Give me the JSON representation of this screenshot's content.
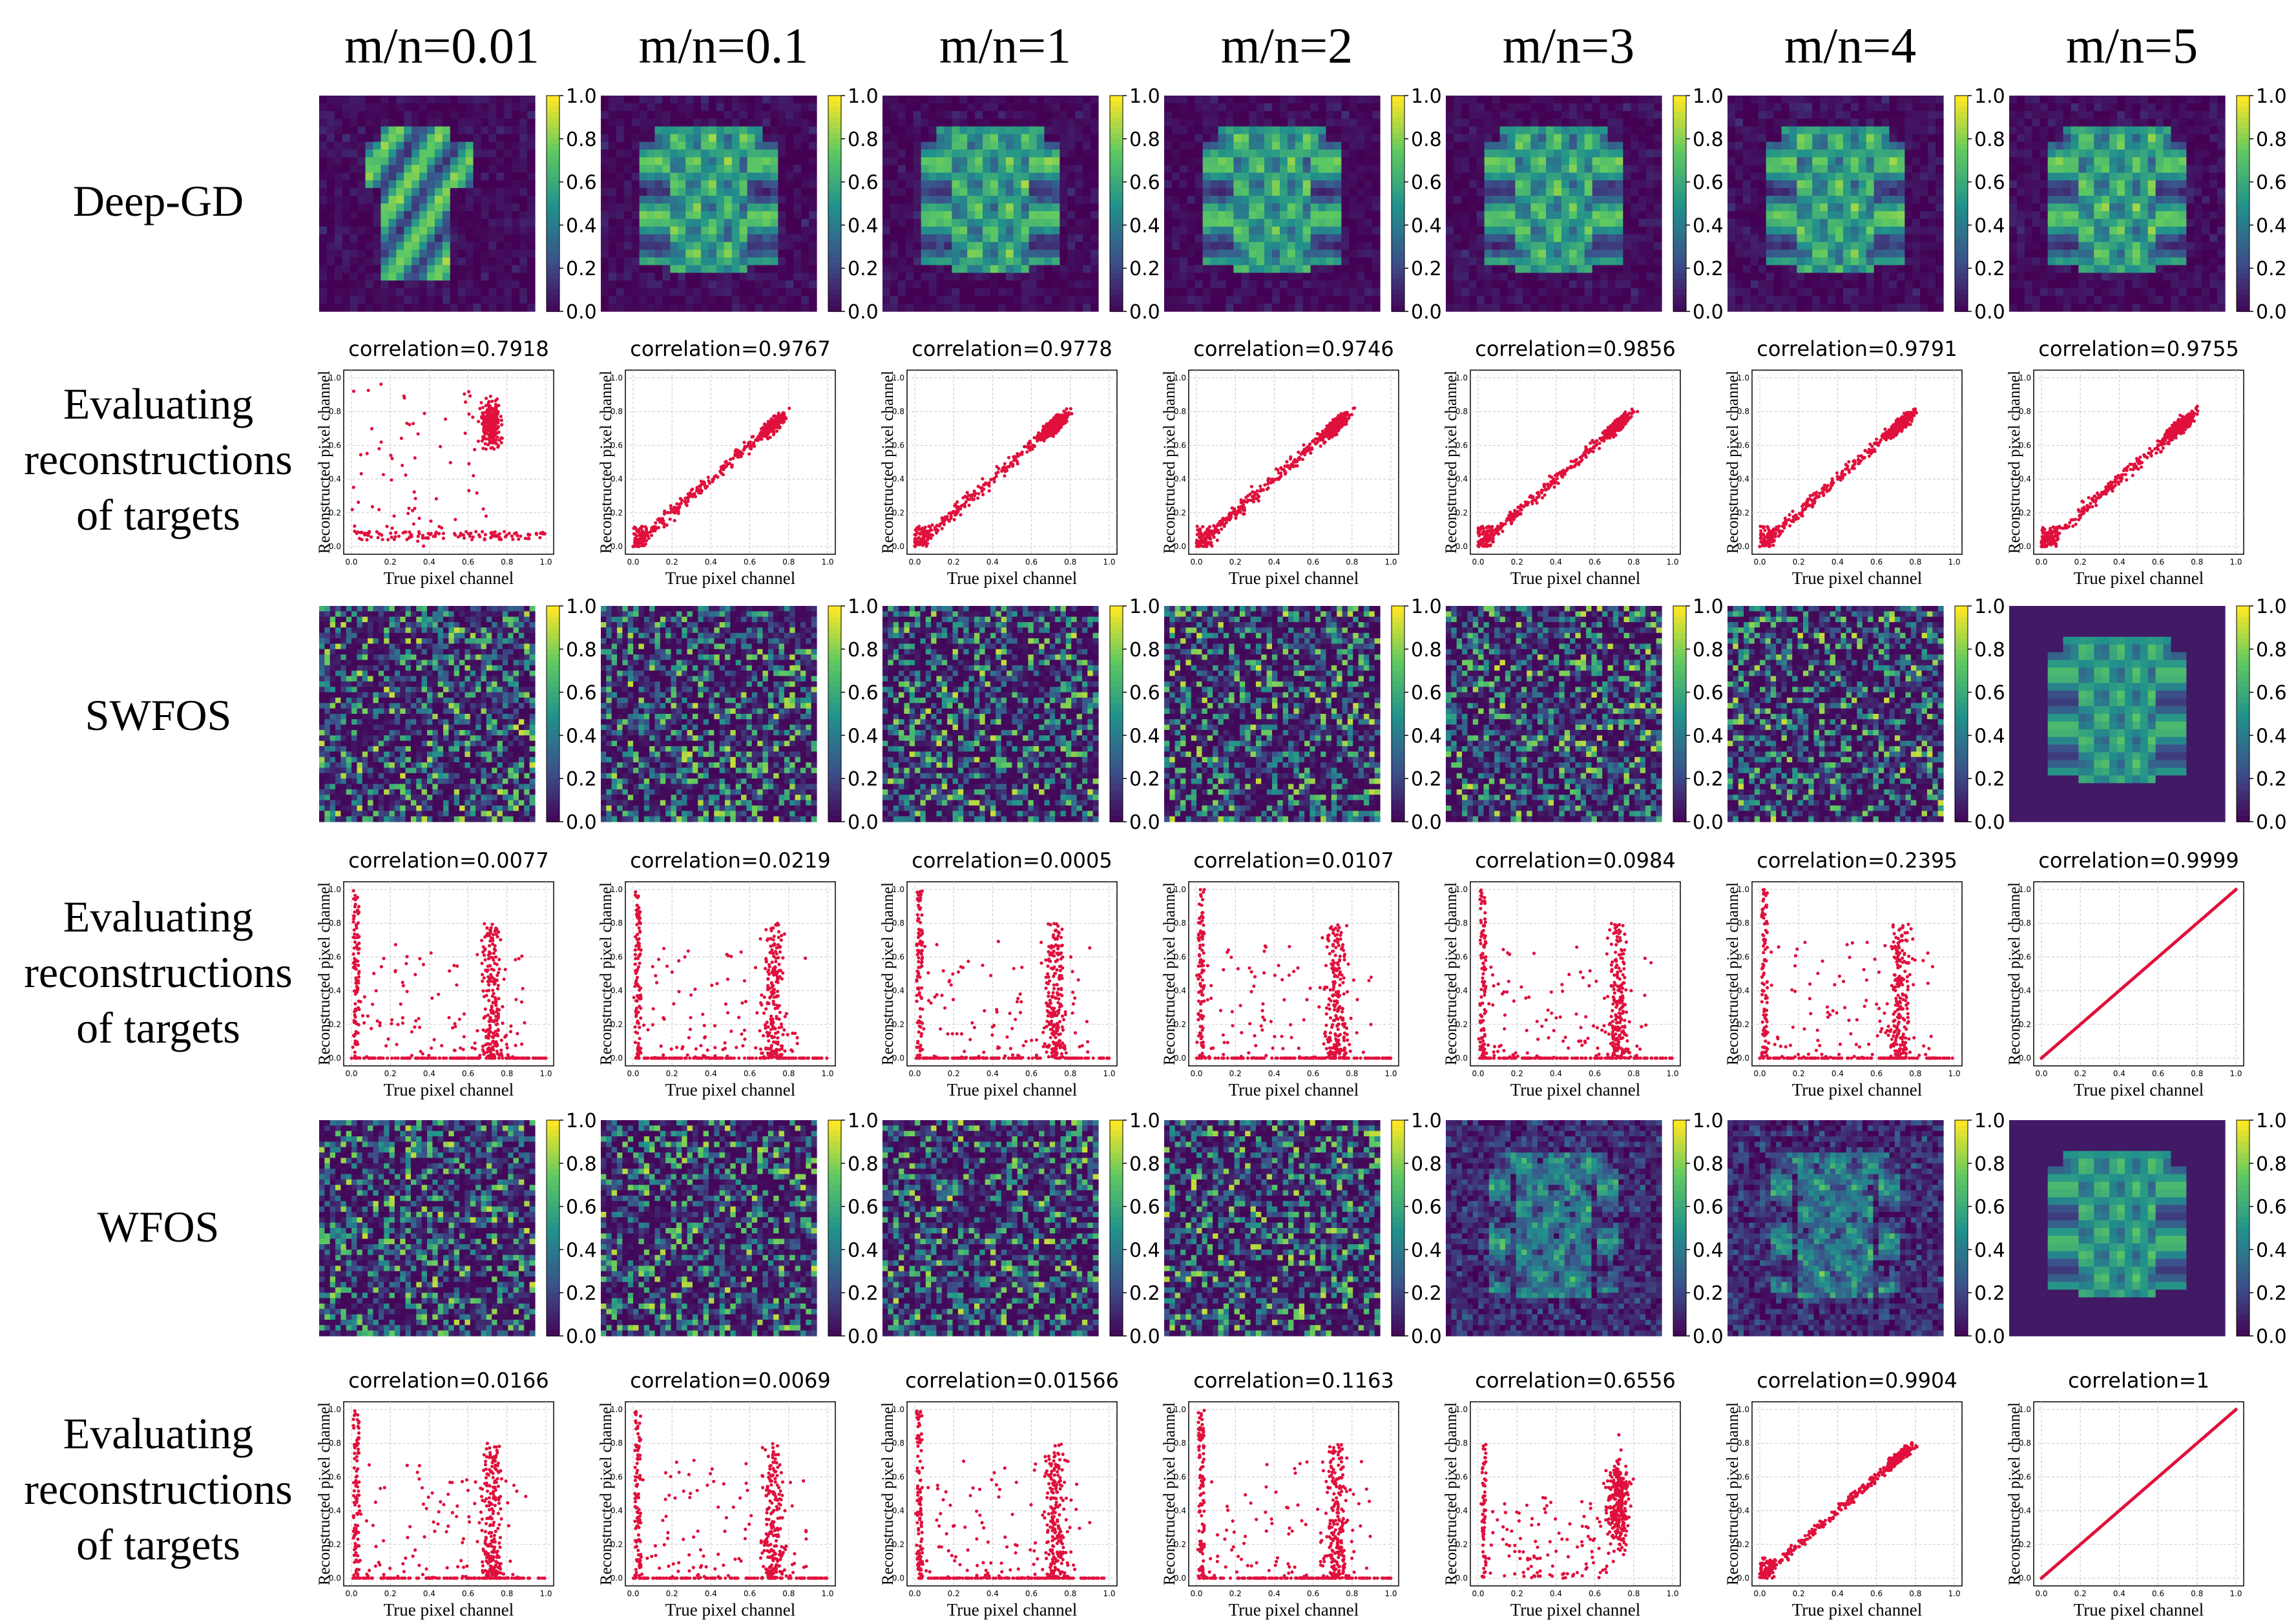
{
  "colors": {
    "scatter_point": "#e0103c",
    "grid": "#c8c8c8",
    "axis": "#000000",
    "viridis_low": "#440154",
    "viridis_mid": "#21918c",
    "viridis_high": "#fde725"
  },
  "column_headers": [
    "m/n=0.01",
    "m/n=0.1",
    "m/n=1",
    "m/n=2",
    "m/n=3",
    "m/n=4",
    "m/n=5"
  ],
  "row_labels": [
    [
      "Deep-GD"
    ],
    [
      "Evaluating",
      "reconstructions",
      "of targets"
    ],
    [
      "SWFOS"
    ],
    [
      "Evaluating",
      "reconstructions",
      "of targets"
    ],
    [
      "WFOS"
    ],
    [
      "Evaluating",
      "reconstructions",
      "of targets"
    ]
  ],
  "colorbar_ticks": [
    "0.0",
    "0.2",
    "0.4",
    "0.6",
    "0.8",
    "1.0"
  ],
  "chart_data": [
    {
      "type": "scatter",
      "method": "Deep-GD",
      "xlabel": "True pixel channel",
      "ylabel": "Reconstructed pixel channel",
      "xlim": [
        0,
        1
      ],
      "ylim": [
        0,
        1
      ],
      "x_ticks": [
        "0.0",
        "0.2",
        "0.4",
        "0.6",
        "0.8",
        "1.0"
      ],
      "y_ticks": [
        "0.0",
        "0.2",
        "0.4",
        "0.6",
        "0.8",
        "1.0"
      ],
      "grid": true,
      "panels": [
        {
          "m_over_n": "m/n=0.01",
          "title": "correlation=0.7918",
          "correlation": 0.7918
        },
        {
          "m_over_n": "m/n=0.1",
          "title": "correlation=0.9767",
          "correlation": 0.9767
        },
        {
          "m_over_n": "m/n=1",
          "title": "correlation=0.9778",
          "correlation": 0.9778
        },
        {
          "m_over_n": "m/n=2",
          "title": "correlation=0.9746",
          "correlation": 0.9746
        },
        {
          "m_over_n": "m/n=3",
          "title": "correlation=0.9856",
          "correlation": 0.9856
        },
        {
          "m_over_n": "m/n=4",
          "title": "correlation=0.9791",
          "correlation": 0.9791
        },
        {
          "m_over_n": "m/n=5",
          "title": "correlation=0.9755",
          "correlation": 0.9755
        }
      ]
    },
    {
      "type": "scatter",
      "method": "SWFOS",
      "xlabel": "True pixel channel",
      "ylabel": "Reconstructed pixel channel",
      "xlim": [
        0,
        1
      ],
      "ylim": [
        0,
        1
      ],
      "x_ticks": [
        "0.0",
        "0.2",
        "0.4",
        "0.6",
        "0.8",
        "1.0"
      ],
      "y_ticks": [
        "0.0",
        "0.2",
        "0.4",
        "0.6",
        "0.8",
        "1.0"
      ],
      "grid": true,
      "panels": [
        {
          "m_over_n": "m/n=0.01",
          "title": "correlation=0.0077",
          "correlation": 0.0077
        },
        {
          "m_over_n": "m/n=0.1",
          "title": "correlation=0.0219",
          "correlation": 0.0219
        },
        {
          "m_over_n": "m/n=1",
          "title": "correlation=0.0005",
          "correlation": 0.0005
        },
        {
          "m_over_n": "m/n=2",
          "title": "correlation=0.0107",
          "correlation": 0.0107
        },
        {
          "m_over_n": "m/n=3",
          "title": "correlation=0.0984",
          "correlation": 0.0984
        },
        {
          "m_over_n": "m/n=4",
          "title": "correlation=0.2395",
          "correlation": 0.2395
        },
        {
          "m_over_n": "m/n=5",
          "title": "correlation=0.9999",
          "correlation": 0.9999
        }
      ]
    },
    {
      "type": "scatter",
      "method": "WFOS",
      "xlabel": "True pixel channel",
      "ylabel": "Reconstructed pixel channel",
      "xlim": [
        0,
        1
      ],
      "ylim": [
        0,
        1
      ],
      "x_ticks": [
        "0.0",
        "0.2",
        "0.4",
        "0.6",
        "0.8",
        "1.0"
      ],
      "y_ticks": [
        "0.0",
        "0.2",
        "0.4",
        "0.6",
        "0.8",
        "1.0"
      ],
      "grid": true,
      "panels": [
        {
          "m_over_n": "m/n=0.01",
          "title": "correlation=0.0166",
          "correlation": 0.0166
        },
        {
          "m_over_n": "m/n=0.1",
          "title": "correlation=0.0069",
          "correlation": 0.0069
        },
        {
          "m_over_n": "m/n=1",
          "title": "correlation=0.01566",
          "correlation": 0.01566
        },
        {
          "m_over_n": "m/n=2",
          "title": "correlation=0.1163",
          "correlation": 0.1163
        },
        {
          "m_over_n": "m/n=3",
          "title": "correlation=0.6556",
          "correlation": 0.6556
        },
        {
          "m_over_n": "m/n=4",
          "title": "correlation=0.9904",
          "correlation": 0.9904
        },
        {
          "m_over_n": "m/n=5",
          "title": "correlation=1",
          "correlation": 1
        }
      ]
    }
  ]
}
